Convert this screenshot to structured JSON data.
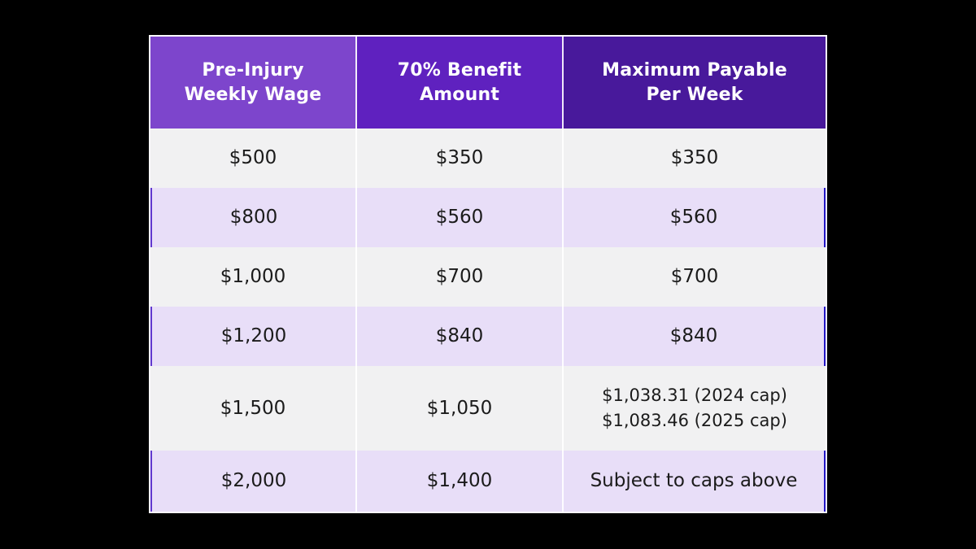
{
  "page": {
    "background_color": "#000000"
  },
  "table": {
    "headers": [
      {
        "label": "Pre-Injury\nWeekly Wage",
        "bg": "#7d45cc"
      },
      {
        "label": "70% Benefit\nAmount",
        "bg": "#5f21bf"
      },
      {
        "label": "Maximum Payable\nPer Week",
        "bg": "#48199b"
      }
    ],
    "rows": [
      {
        "cells": [
          "$500",
          "$350",
          "$350"
        ]
      },
      {
        "cells": [
          "$800",
          "$560",
          "$560"
        ]
      },
      {
        "cells": [
          "$1,000",
          "$700",
          "$700"
        ]
      },
      {
        "cells": [
          "$1,200",
          "$840",
          "$840"
        ]
      },
      {
        "cells": [
          "$1,500",
          "$1,050",
          "$1,038.31 (2024 cap)\n$1,083.46 (2025 cap)"
        ]
      },
      {
        "cells": [
          "$2,000",
          "$1,400",
          "Subject to caps above"
        ]
      }
    ],
    "colors": {
      "header_text": "#ffffff",
      "header_bg_col1": "#7d45cc",
      "header_bg_col2": "#5f21bf",
      "header_bg_col3": "#48199b",
      "row_gray": "#f1f1f2",
      "row_lavender": "#e8def8",
      "body_text": "#1b1b1b",
      "separator": "#ffffff",
      "page_background": "#000000"
    }
  },
  "chart_data": {
    "type": "table",
    "title": "",
    "columns": [
      "Pre-Injury Weekly Wage",
      "70% Benefit Amount",
      "Maximum Payable Per Week"
    ],
    "rows": [
      [
        "$500",
        "$350",
        "$350"
      ],
      [
        "$800",
        "$560",
        "$560"
      ],
      [
        "$1,000",
        "$700",
        "$700"
      ],
      [
        "$1,200",
        "$840",
        "$840"
      ],
      [
        "$1,500",
        "$1,050",
        "$1,038.31 (2024 cap) $1,083.46 (2025 cap)"
      ],
      [
        "$2,000",
        "$1,400",
        "Subject to caps above"
      ]
    ]
  }
}
